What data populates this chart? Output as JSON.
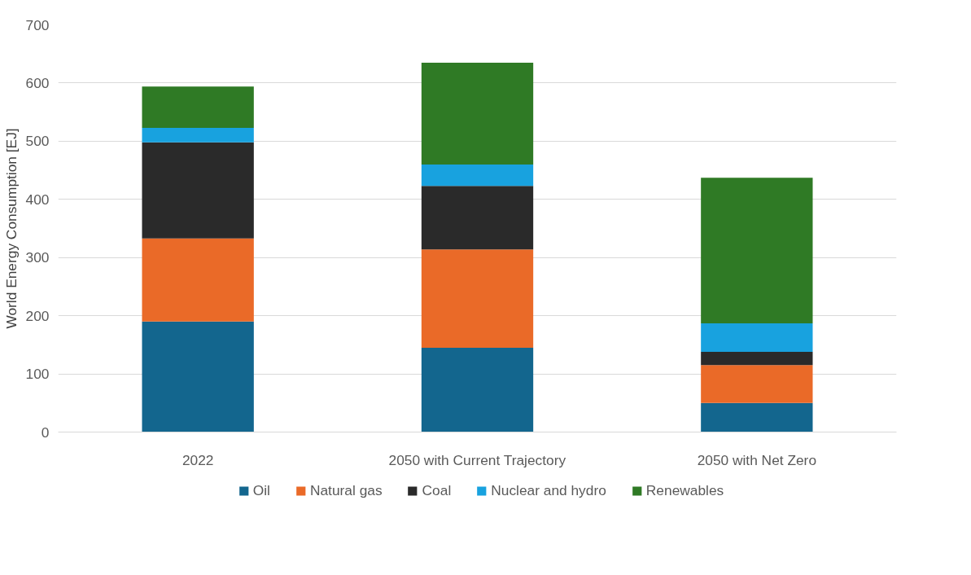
{
  "chart_data": {
    "type": "bar",
    "stacked": true,
    "ylabel": "World Energy Consumption [EJ]",
    "categories": [
      "2022",
      "2050 with Current Trajectory",
      "2050 with Net Zero"
    ],
    "series": [
      {
        "name": "Oil",
        "color": "#13668e",
        "values": [
          190,
          145,
          50
        ]
      },
      {
        "name": "Natural gas",
        "color": "#ea6a28",
        "values": [
          143,
          169,
          65
        ]
      },
      {
        "name": "Coal",
        "color": "#2a2a2a",
        "values": [
          165,
          109,
          23
        ]
      },
      {
        "name": "Nuclear and hydro",
        "color": "#18a2df",
        "values": [
          25,
          37,
          49
        ]
      },
      {
        "name": "Renewables",
        "color": "#2f7a25",
        "values": [
          71,
          175,
          250
        ]
      }
    ],
    "ylim": [
      0,
      700
    ],
    "yticks": [
      0,
      100,
      200,
      300,
      400,
      500,
      600,
      700
    ],
    "grid": "y",
    "legend": "bottom"
  }
}
